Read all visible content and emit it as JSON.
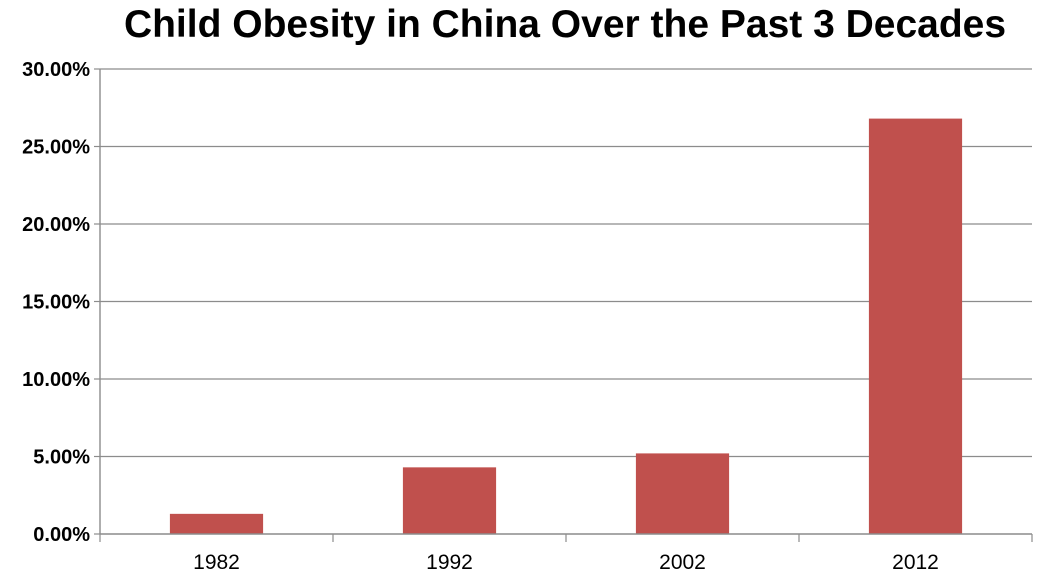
{
  "chart_data": {
    "type": "bar",
    "title": "Child Obesity in China Over the Past 3 Decades",
    "xlabel": "",
    "ylabel": "",
    "categories": [
      "1982",
      "1992",
      "2002",
      "2012"
    ],
    "values": [
      1.3,
      4.3,
      5.2,
      26.8
    ],
    "value_unit": "percent",
    "ylim": [
      0,
      30
    ],
    "yticks": [
      0,
      5,
      10,
      15,
      20,
      25,
      30
    ],
    "ytick_labels": [
      "0.00%",
      "5.00%",
      "10.00%",
      "15.00%",
      "20.00%",
      "25.00%",
      "30.00%"
    ],
    "grid": true,
    "legend": "none",
    "colors": {
      "bar": "#c0504d",
      "grid": "#8c8c8c",
      "axis": "#8c8c8c"
    }
  }
}
